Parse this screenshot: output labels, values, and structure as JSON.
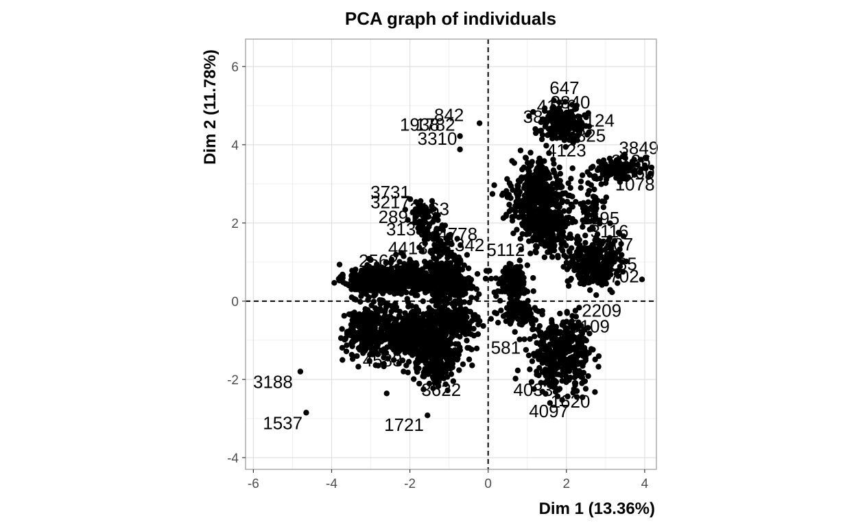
{
  "chart_data": {
    "type": "scatter",
    "title": "PCA graph of individuals",
    "xlabel": "Dim 1 (13.36%)",
    "ylabel": "Dim 2 (11.78%)",
    "xlim": [
      -6.2,
      4.3
    ],
    "ylim": [
      -4.3,
      6.7
    ],
    "xticks": [
      -6,
      -4,
      -2,
      0,
      2,
      4
    ],
    "yticks": [
      -4,
      -2,
      0,
      2,
      4,
      6
    ],
    "grid": true,
    "reference_lines": {
      "x": 0,
      "y": 0,
      "style": "dashed"
    },
    "point_color": "#000000",
    "clusters": [
      {
        "cx": -3.0,
        "cy": 0.55,
        "rx": 0.55,
        "ry": 0.33,
        "n": 260
      },
      {
        "cx": -2.0,
        "cy": 0.6,
        "rx": 0.55,
        "ry": 0.35,
        "n": 260
      },
      {
        "cx": -1.0,
        "cy": 0.5,
        "rx": 0.55,
        "ry": 0.45,
        "n": 260
      },
      {
        "cx": -3.0,
        "cy": -0.75,
        "rx": 0.55,
        "ry": 0.55,
        "n": 320
      },
      {
        "cx": -2.0,
        "cy": -0.8,
        "rx": 0.55,
        "ry": 0.55,
        "n": 300
      },
      {
        "cx": -1.3,
        "cy": -1.35,
        "rx": 0.55,
        "ry": 0.6,
        "n": 320
      },
      {
        "cx": -0.9,
        "cy": -0.5,
        "rx": 0.55,
        "ry": 0.4,
        "n": 200
      },
      {
        "cx": 0.6,
        "cy": 0.5,
        "rx": 0.35,
        "ry": 0.35,
        "n": 140
      },
      {
        "cx": 0.8,
        "cy": -0.3,
        "rx": 0.4,
        "ry": 0.25,
        "n": 100
      },
      {
        "cx": 1.3,
        "cy": 2.7,
        "rx": 0.6,
        "ry": 0.75,
        "n": 420
      },
      {
        "cx": 1.5,
        "cy": 1.8,
        "rx": 0.5,
        "ry": 0.5,
        "n": 200
      },
      {
        "cx": 2.7,
        "cy": 1.0,
        "rx": 0.55,
        "ry": 0.55,
        "n": 280
      },
      {
        "cx": 1.9,
        "cy": -1.35,
        "rx": 0.65,
        "ry": 0.75,
        "n": 400
      },
      {
        "cx": 1.9,
        "cy": 4.55,
        "rx": 0.5,
        "ry": 0.35,
        "n": 200
      },
      {
        "cx": 3.3,
        "cy": 3.4,
        "rx": 0.55,
        "ry": 0.25,
        "n": 120
      },
      {
        "cx": -1.6,
        "cy": 2.1,
        "rx": 0.4,
        "ry": 0.4,
        "n": 70
      },
      {
        "cx": -1.2,
        "cy": 1.4,
        "rx": 0.4,
        "ry": 0.3,
        "n": 70
      },
      {
        "cx": 2.6,
        "cy": 2.4,
        "rx": 0.3,
        "ry": 0.4,
        "n": 50
      }
    ],
    "outlier_points": [
      {
        "x": -4.8,
        "y": -1.8
      },
      {
        "x": -4.65,
        "y": -2.85
      },
      {
        "x": -1.55,
        "y": -2.92
      },
      {
        "x": -0.72,
        "y": 4.22
      },
      {
        "x": -0.72,
        "y": 3.88
      },
      {
        "x": -0.22,
        "y": 4.55
      },
      {
        "x": 0.7,
        "y": -1.98
      },
      {
        "x": 3.9,
        "y": 3.62
      }
    ],
    "point_labels": [
      {
        "label": "842",
        "x": -1.0,
        "y": 4.72
      },
      {
        "label": "1938",
        "x": -1.75,
        "y": 4.48
      },
      {
        "label": "1782",
        "x": -1.35,
        "y": 4.48
      },
      {
        "label": "3310",
        "x": -1.3,
        "y": 4.12
      },
      {
        "label": "647",
        "x": 1.95,
        "y": 5.42
      },
      {
        "label": "3840",
        "x": 2.1,
        "y": 5.05
      },
      {
        "label": "4176",
        "x": 1.75,
        "y": 4.95
      },
      {
        "label": "3814",
        "x": 1.4,
        "y": 4.68
      },
      {
        "label": "124",
        "x": 2.85,
        "y": 4.58
      },
      {
        "label": "3825",
        "x": 2.5,
        "y": 4.2
      },
      {
        "label": "4123",
        "x": 2.0,
        "y": 3.82
      },
      {
        "label": "3849",
        "x": 3.85,
        "y": 3.88
      },
      {
        "label": "2136",
        "x": 3.65,
        "y": 3.55
      },
      {
        "label": "3060",
        "x": 3.75,
        "y": 3.25
      },
      {
        "label": "1078",
        "x": 3.75,
        "y": 2.95
      },
      {
        "label": "3731",
        "x": -2.5,
        "y": 2.75
      },
      {
        "label": "3217",
        "x": -2.5,
        "y": 2.5
      },
      {
        "label": "2163",
        "x": -1.5,
        "y": 2.32
      },
      {
        "label": "2891",
        "x": -2.3,
        "y": 2.12
      },
      {
        "label": "3134",
        "x": -2.1,
        "y": 1.8
      },
      {
        "label": "4778",
        "x": -0.78,
        "y": 1.68
      },
      {
        "label": "4413",
        "x": -2.05,
        "y": 1.32
      },
      {
        "label": "2342",
        "x": -0.6,
        "y": 1.4
      },
      {
        "label": "1695",
        "x": 2.85,
        "y": 2.08
      },
      {
        "label": "3116",
        "x": 3.1,
        "y": 1.75
      },
      {
        "label": "3107",
        "x": 3.2,
        "y": 1.42
      },
      {
        "label": "2562",
        "x": -2.8,
        "y": 1.0
      },
      {
        "label": "5112",
        "x": 0.45,
        "y": 1.28
      },
      {
        "label": "4285",
        "x": 3.3,
        "y": 0.92
      },
      {
        "label": "1702",
        "x": 3.35,
        "y": 0.6
      },
      {
        "label": "2209",
        "x": 2.9,
        "y": -0.28
      },
      {
        "label": "3109",
        "x": 2.6,
        "y": -0.68
      },
      {
        "label": "4583",
        "x": -2.7,
        "y": -1.55
      },
      {
        "label": "581",
        "x": 0.45,
        "y": -1.22
      },
      {
        "label": "3188",
        "x": -5.5,
        "y": -2.1
      },
      {
        "label": "1537",
        "x": -5.25,
        "y": -3.15
      },
      {
        "label": "1721",
        "x": -2.15,
        "y": -3.2
      },
      {
        "label": "4033",
        "x": 1.15,
        "y": -2.3
      },
      {
        "label": "4097",
        "x": 1.55,
        "y": -2.85
      },
      {
        "label": "1620",
        "x": 2.1,
        "y": -2.6
      },
      {
        "label": "3622",
        "x": -1.2,
        "y": -2.3
      }
    ]
  }
}
